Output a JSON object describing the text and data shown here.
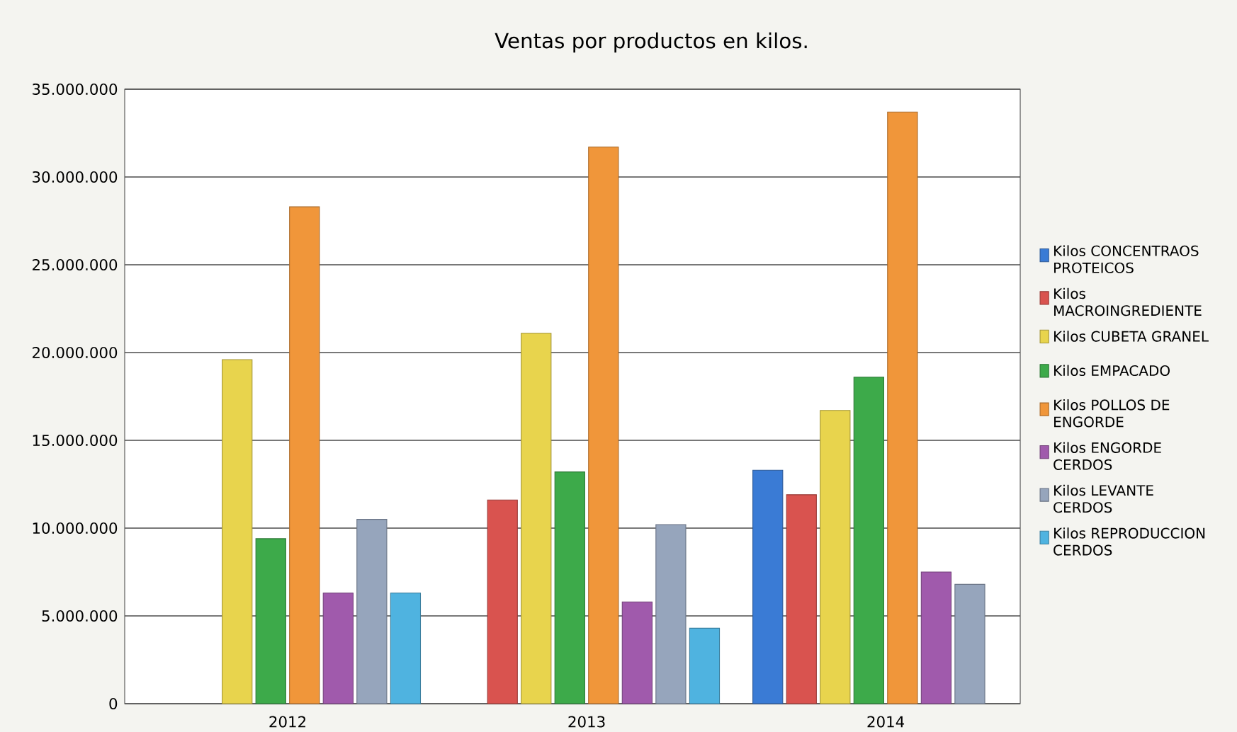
{
  "chart_data": {
    "type": "bar",
    "title": "Ventas por productos en kilos.",
    "categories": [
      "2012",
      "2013",
      "2014"
    ],
    "series": [
      {
        "name": "Kilos CONCENTRAOS PROTEICOS",
        "color": "#3a7bd5",
        "values": [
          null,
          null,
          13300000
        ]
      },
      {
        "name": "Kilos MACROINGREDIENTE",
        "color": "#d9534f",
        "values": [
          null,
          11600000,
          11900000
        ]
      },
      {
        "name": "Kilos CUBETA GRANEL",
        "color": "#e8d44d",
        "values": [
          19600000,
          21100000,
          16700000
        ]
      },
      {
        "name": "Kilos EMPACADO",
        "color": "#3daa4a",
        "values": [
          9400000,
          13200000,
          18600000
        ]
      },
      {
        "name": "Kilos POLLOS DE ENGORDE",
        "color": "#f0963a",
        "values": [
          28300000,
          31700000,
          33700000
        ]
      },
      {
        "name": "Kilos ENGORDE CERDOS",
        "color": "#a05aac",
        "values": [
          6300000,
          5800000,
          7500000
        ]
      },
      {
        "name": "Kilos LEVANTE CERDOS",
        "color": "#96a5bc",
        "values": [
          10500000,
          10200000,
          6800000
        ]
      },
      {
        "name": "Kilos REPRODUCCION CERDOS",
        "color": "#4fb3e0",
        "values": [
          6300000,
          4300000,
          null
        ]
      }
    ],
    "ylim": [
      0,
      35000000
    ],
    "yticks": [
      0,
      {
        "value": 5000000,
        "label": "5.000.000"
      },
      {
        "value": 10000000,
        "label": "10.000.000"
      },
      {
        "value": 15000000,
        "label": "15.000.000"
      },
      {
        "value": 20000000,
        "label": "20.000.000"
      },
      {
        "value": 25000000,
        "label": "25.000.000"
      },
      {
        "value": 30000000,
        "label": "30.000.000"
      },
      {
        "value": 35000000,
        "label": "35.000.000"
      }
    ],
    "grid": "y",
    "legend": "right"
  }
}
